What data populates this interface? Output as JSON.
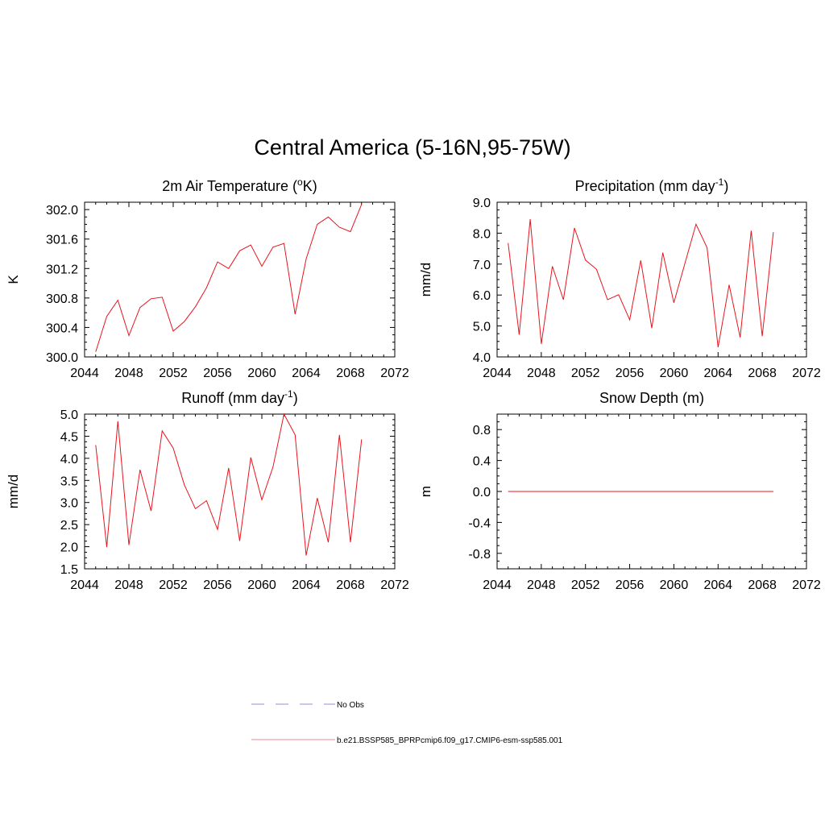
{
  "title": "Central America (5-16N,95-75W)",
  "chart_data": [
    {
      "type": "line",
      "title": "2m Air Temperature (",
      "title_sup": "o",
      "title_tail": "K)",
      "ylabel": "K",
      "xlim": [
        2044,
        2072
      ],
      "ylim": [
        300.0,
        302.1
      ],
      "xticks": [
        "2044",
        "2048",
        "2052",
        "2056",
        "2060",
        "2064",
        "2068",
        "2072"
      ],
      "yticks": [
        "300.0",
        "300.4",
        "300.8",
        "301.2",
        "301.6",
        "302.0"
      ],
      "x": [
        2045,
        2046,
        2047,
        2048,
        2049,
        2050,
        2051,
        2052,
        2053,
        2054,
        2055,
        2056,
        2057,
        2058,
        2059,
        2060,
        2061,
        2062,
        2063,
        2064,
        2065,
        2066,
        2067,
        2068,
        2069
      ],
      "series": [
        {
          "color": "#e8141e",
          "values": [
            300.07,
            300.55,
            300.77,
            300.29,
            300.67,
            300.79,
            300.81,
            300.35,
            300.48,
            300.68,
            300.94,
            301.29,
            301.2,
            301.44,
            301.52,
            301.23,
            301.49,
            301.54,
            300.58,
            301.33,
            301.8,
            301.9,
            301.76,
            301.7,
            302.07
          ]
        }
      ]
    },
    {
      "type": "line",
      "title": "Precipitation (mm day",
      "title_sup": "-1",
      "title_tail": ")",
      "ylabel": "mm/d",
      "xlim": [
        2044,
        2072
      ],
      "ylim": [
        4.0,
        9.0
      ],
      "xticks": [
        "2044",
        "2048",
        "2052",
        "2056",
        "2060",
        "2064",
        "2068",
        "2072"
      ],
      "yticks": [
        "4.0",
        "5.0",
        "6.0",
        "7.0",
        "8.0",
        "9.0"
      ],
      "x": [
        2045,
        2046,
        2047,
        2048,
        2049,
        2050,
        2051,
        2052,
        2053,
        2054,
        2055,
        2056,
        2057,
        2058,
        2059,
        2060,
        2061,
        2062,
        2063,
        2064,
        2065,
        2066,
        2067,
        2068,
        2069
      ],
      "series": [
        {
          "color": "#e8141e",
          "values": [
            7.68,
            4.72,
            8.45,
            4.42,
            6.93,
            5.85,
            8.17,
            7.13,
            6.83,
            5.85,
            6.01,
            5.2,
            7.12,
            4.93,
            7.37,
            5.75,
            7.02,
            8.29,
            7.53,
            4.31,
            6.33,
            4.63,
            8.08,
            4.67,
            8.03
          ]
        }
      ]
    },
    {
      "type": "line",
      "title": "Runoff (mm day",
      "title_sup": "-1",
      "title_tail": ")",
      "ylabel": "mm/d",
      "xlim": [
        2044,
        2072
      ],
      "ylim": [
        1.5,
        5.0
      ],
      "xticks": [
        "2044",
        "2048",
        "2052",
        "2056",
        "2060",
        "2064",
        "2068",
        "2072"
      ],
      "yticks": [
        "1.5",
        "2.0",
        "2.5",
        "3.0",
        "3.5",
        "4.0",
        "4.5",
        "5.0"
      ],
      "x": [
        2045,
        2046,
        2047,
        2048,
        2049,
        2050,
        2051,
        2052,
        2053,
        2054,
        2055,
        2056,
        2057,
        2058,
        2059,
        2060,
        2061,
        2062,
        2063,
        2064,
        2065,
        2066,
        2067,
        2068,
        2069
      ],
      "series": [
        {
          "color": "#e8141e",
          "values": [
            4.3,
            1.99,
            4.84,
            2.04,
            3.74,
            2.81,
            4.62,
            4.23,
            3.4,
            2.86,
            3.04,
            2.39,
            3.78,
            2.13,
            4.02,
            3.06,
            3.8,
            5.0,
            4.53,
            1.8,
            3.1,
            2.1,
            4.53,
            2.1,
            4.43
          ]
        }
      ]
    },
    {
      "type": "line",
      "title": "Snow Depth (m)",
      "title_sup": "",
      "title_tail": "",
      "ylabel": "m",
      "xlim": [
        2044,
        2072
      ],
      "ylim": [
        -1.0,
        1.0
      ],
      "xticks": [
        "2044",
        "2048",
        "2052",
        "2056",
        "2060",
        "2064",
        "2068",
        "2072"
      ],
      "yticks": [
        "-0.8",
        "-0.4",
        "0.0",
        "0.4",
        "0.8"
      ],
      "x": [
        2045,
        2046,
        2047,
        2048,
        2049,
        2050,
        2051,
        2052,
        2053,
        2054,
        2055,
        2056,
        2057,
        2058,
        2059,
        2060,
        2061,
        2062,
        2063,
        2064,
        2065,
        2066,
        2067,
        2068,
        2069
      ],
      "series": [
        {
          "color": "#e8141e",
          "values": [
            0,
            0,
            0,
            0,
            0,
            0,
            0,
            0,
            0,
            0,
            0,
            0,
            0,
            0,
            0,
            0,
            0,
            0,
            0,
            0,
            0,
            0,
            0,
            0,
            0
          ]
        }
      ]
    }
  ],
  "legend": [
    {
      "label": "No Obs",
      "color": "#a8a8e0",
      "style": "dashed"
    },
    {
      "label": "b.e21.BSSP585_BPRPcmip6.f09_g17.CMIP6-esm-ssp585.001",
      "color": "#f0a0a8",
      "style": "solid"
    }
  ]
}
